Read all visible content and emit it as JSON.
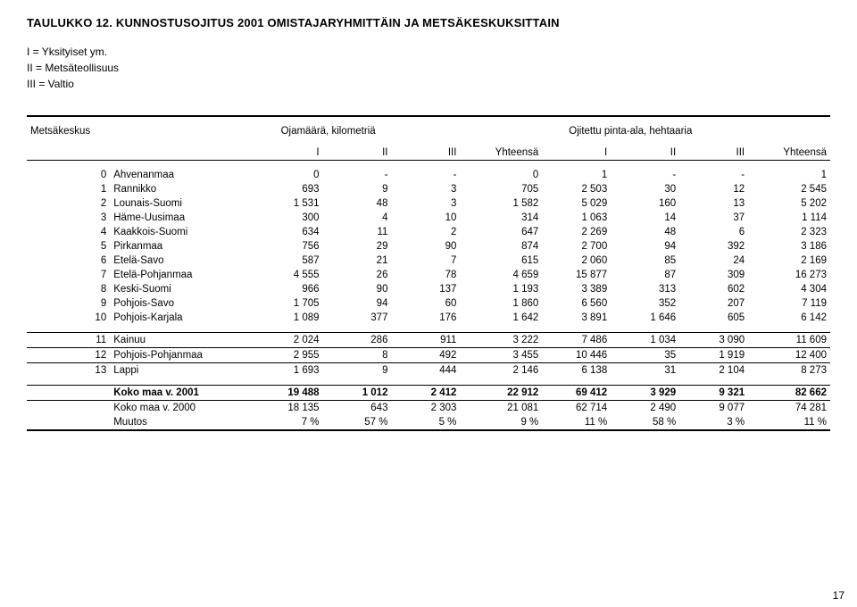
{
  "title": "TAULUKKO 12. KUNNOSTUSOJITUS 2001 OMISTAJARYHMITTÄIN JA METSÄKESKUKSITTAIN",
  "legend": {
    "l1": "I  = Yksityiset ym.",
    "l2": "II  = Metsäteollisuus",
    "l3": "III = Valtio"
  },
  "header": {
    "left_label": "Metsäkeskus",
    "group1": "Ojamäärä, kilometriä",
    "group2": "Ojitettu pinta-ala, hehtaaria",
    "cols": [
      "I",
      "II",
      "III",
      "Yhteensä",
      "I",
      "II",
      "III",
      "Yhteensä"
    ]
  },
  "rows": [
    {
      "idx": "0",
      "region": "Ahvenanmaa",
      "v": [
        "0",
        "-",
        "-",
        "0",
        "1",
        "-",
        "-",
        "1"
      ]
    },
    {
      "idx": "1",
      "region": "Rannikko",
      "v": [
        "693",
        "9",
        "3",
        "705",
        "2 503",
        "30",
        "12",
        "2 545"
      ]
    },
    {
      "idx": "2",
      "region": "Lounais-Suomi",
      "v": [
        "1 531",
        "48",
        "3",
        "1 582",
        "5 029",
        "160",
        "13",
        "5 202"
      ]
    },
    {
      "idx": "3",
      "region": "Häme-Uusimaa",
      "v": [
        "300",
        "4",
        "10",
        "314",
        "1 063",
        "14",
        "37",
        "1 114"
      ]
    },
    {
      "idx": "4",
      "region": "Kaakkois-Suomi",
      "v": [
        "634",
        "11",
        "2",
        "647",
        "2 269",
        "48",
        "6",
        "2 323"
      ]
    },
    {
      "idx": "5",
      "region": "Pirkanmaa",
      "v": [
        "756",
        "29",
        "90",
        "874",
        "2 700",
        "94",
        "392",
        "3 186"
      ]
    },
    {
      "idx": "6",
      "region": "Etelä-Savo",
      "v": [
        "587",
        "21",
        "7",
        "615",
        "2 060",
        "85",
        "24",
        "2 169"
      ]
    },
    {
      "idx": "7",
      "region": "Etelä-Pohjanmaa",
      "v": [
        "4 555",
        "26",
        "78",
        "4 659",
        "15 877",
        "87",
        "309",
        "16 273"
      ]
    },
    {
      "idx": "8",
      "region": "Keski-Suomi",
      "v": [
        "966",
        "90",
        "137",
        "1 193",
        "3 389",
        "313",
        "602",
        "4 304"
      ]
    },
    {
      "idx": "9",
      "region": "Pohjois-Savo",
      "v": [
        "1 705",
        "94",
        "60",
        "1 860",
        "6 560",
        "352",
        "207",
        "7 119"
      ]
    },
    {
      "idx": "10",
      "region": "Pohjois-Karjala",
      "v": [
        "1 089",
        "377",
        "176",
        "1 642",
        "3 891",
        "1 646",
        "605",
        "6 142"
      ]
    }
  ],
  "rows2": [
    {
      "idx": "11",
      "region": "Kainuu",
      "v": [
        "2 024",
        "286",
        "911",
        "3 222",
        "7 486",
        "1 034",
        "3 090",
        "11 609"
      ]
    },
    {
      "idx": "12",
      "region": "Pohjois-Pohjanmaa",
      "v": [
        "2 955",
        "8",
        "492",
        "3 455",
        "10 446",
        "35",
        "1 919",
        "12 400"
      ]
    },
    {
      "idx": "13",
      "region": "Lappi",
      "v": [
        "1 693",
        "9",
        "444",
        "2 146",
        "6 138",
        "31",
        "2 104",
        "8 273"
      ]
    }
  ],
  "total": {
    "idx": "",
    "region": "Koko maa v. 2001",
    "v": [
      "19 488",
      "1 012",
      "2 412",
      "22 912",
      "69 412",
      "3 929",
      "9 321",
      "82 662"
    ]
  },
  "prev": {
    "idx": "",
    "region": "Koko maa v. 2000",
    "v": [
      "18 135",
      "643",
      "2 303",
      "21 081",
      "62 714",
      "2 490",
      "9 077",
      "74 281"
    ]
  },
  "change": {
    "idx": "",
    "region": "Muutos",
    "v": [
      "7 %",
      "57 %",
      "5 %",
      "9 %",
      "11 %",
      "58 %",
      "3 %",
      "11 %"
    ]
  },
  "page_number": "17",
  "colors": {
    "text": "#000000",
    "bg": "#ffffff",
    "rule": "#000000"
  }
}
